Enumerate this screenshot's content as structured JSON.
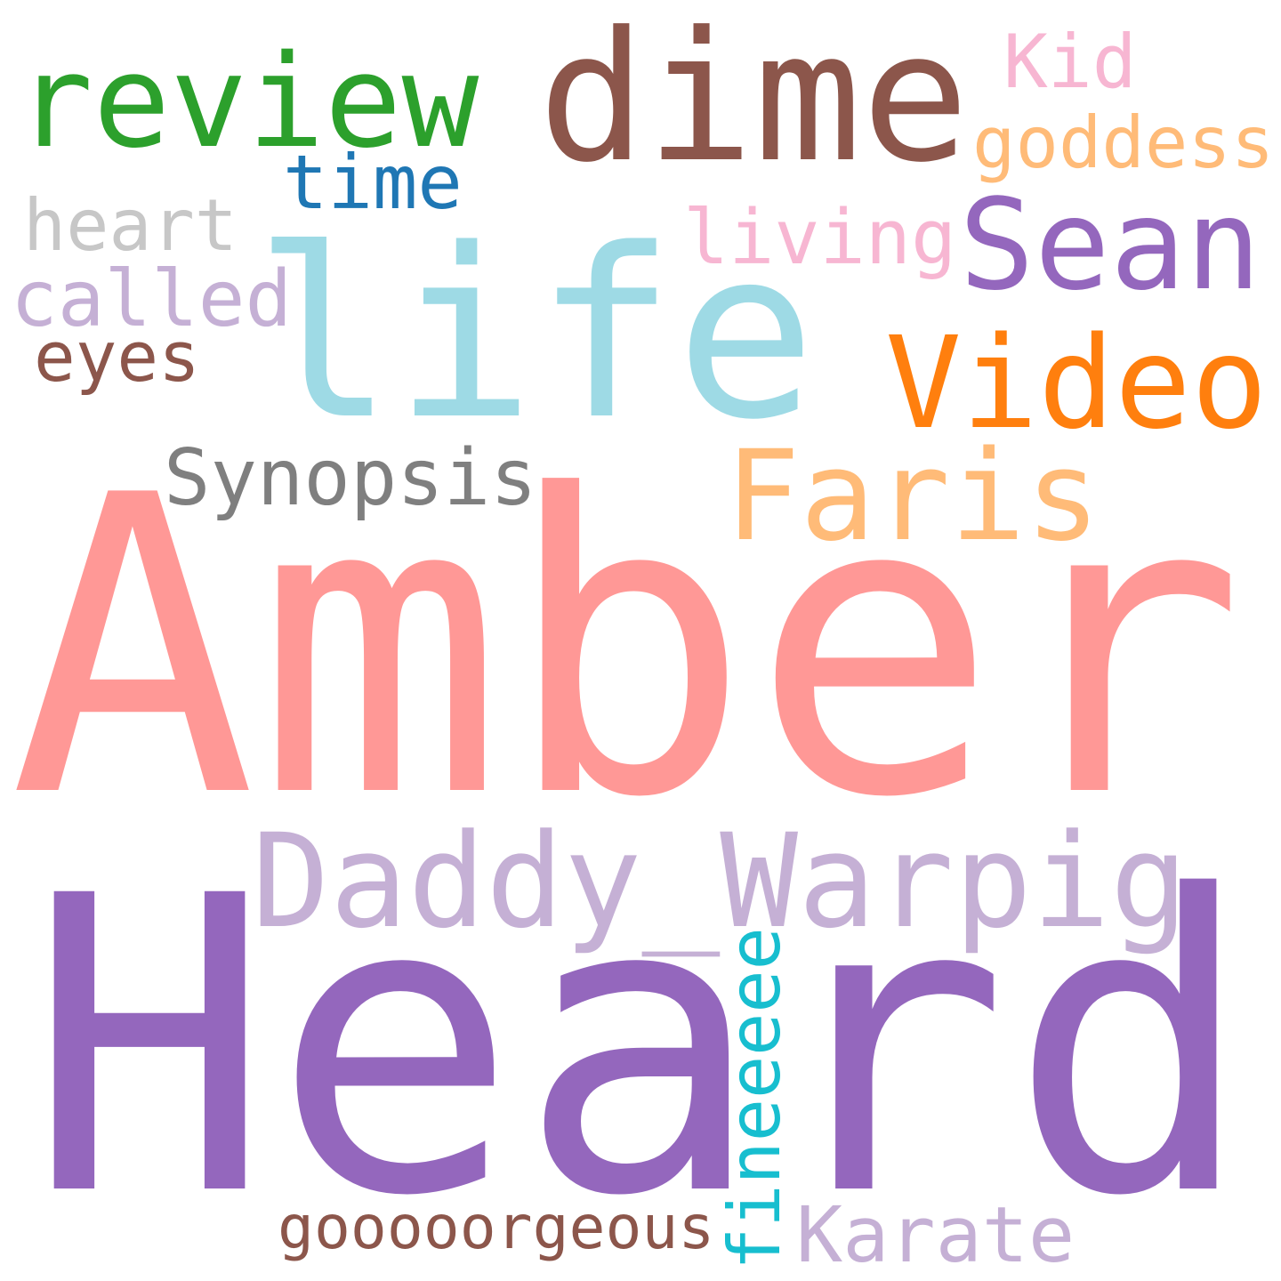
{
  "cloud": {
    "words": [
      {
        "text": "Heard",
        "color": "#9467bd"
      },
      {
        "text": "Amber",
        "color": "#ff9896"
      },
      {
        "text": "life",
        "color": "#9edae5"
      },
      {
        "text": "dime",
        "color": "#8c564b"
      },
      {
        "text": "review",
        "color": "#2ca02c"
      },
      {
        "text": "Daddy_Warpig",
        "color": "#c5b0d5"
      },
      {
        "text": "Sean",
        "color": "#9467bd"
      },
      {
        "text": "Video",
        "color": "#ff7f0e"
      },
      {
        "text": "Faris",
        "color": "#ffbb78"
      },
      {
        "text": "Kid",
        "color": "#f7b6d2"
      },
      {
        "text": "goddess",
        "color": "#ffbb78"
      },
      {
        "text": "time",
        "color": "#1f77b4"
      },
      {
        "text": "living",
        "color": "#f7b6d2"
      },
      {
        "text": "heart",
        "color": "#c7c7c7"
      },
      {
        "text": "called",
        "color": "#c5b0d5"
      },
      {
        "text": "eyes",
        "color": "#8c564b"
      },
      {
        "text": "Synopsis",
        "color": "#7f7f7f"
      },
      {
        "text": "fineeeee",
        "color": "#17becf"
      },
      {
        "text": "Karate",
        "color": "#c5b0d5"
      },
      {
        "text": "gooooorgeous",
        "color": "#8c564b"
      }
    ]
  }
}
